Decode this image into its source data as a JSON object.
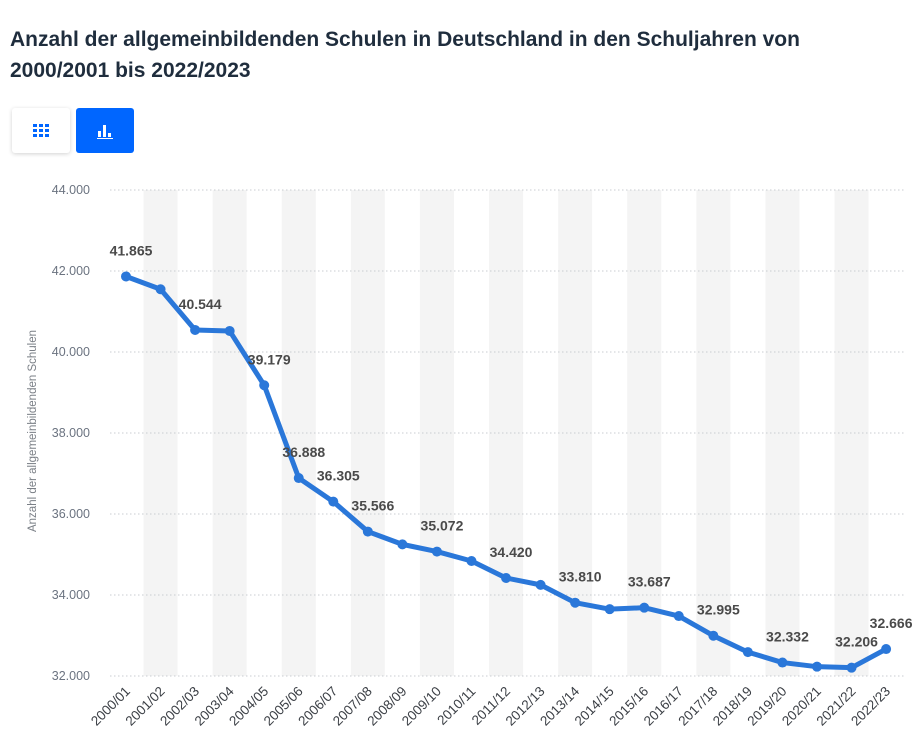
{
  "title": "Anzahl der allgemeinbildenden Schulen in Deutschland in den Schuljahren von 2000/2001 bis 2022/2023",
  "view_toggle": {
    "table_icon": "table-grid-icon",
    "chart_icon": "bar-chart-icon",
    "active": "chart"
  },
  "colors": {
    "accent": "#0066ff",
    "line": "#2a77d9",
    "band": "#f4f4f4",
    "grid": "#c9ccd1",
    "title": "#1f2d3d"
  },
  "chart_data": {
    "type": "line",
    "title": "Anzahl der allgemeinbildenden Schulen in Deutschland in den Schuljahren von 2000/2001 bis 2022/2023",
    "xlabel": "",
    "ylabel": "Anzahl der allgemeinbildenden Schulen",
    "ylim": [
      32000,
      44000
    ],
    "yticks": [
      32000,
      34000,
      36000,
      38000,
      40000,
      42000,
      44000
    ],
    "ytick_labels": [
      "32.000",
      "34.000",
      "36.000",
      "38.000",
      "40.000",
      "42.000",
      "44.000"
    ],
    "grid": "horizontal-dotted",
    "categories": [
      "2000/01",
      "2001/02",
      "2002/03",
      "2003/04",
      "2004/05",
      "2005/06",
      "2006/07",
      "2007/08",
      "2008/09",
      "2009/10",
      "2010/11",
      "2011/12",
      "2012/13",
      "2013/14",
      "2014/15",
      "2015/16",
      "2016/17",
      "2017/18",
      "2018/19",
      "2019/20",
      "2020/21",
      "2021/22",
      "2022/23"
    ],
    "values": [
      41865,
      41550,
      40544,
      40520,
      39179,
      36888,
      36305,
      35566,
      35250,
      35072,
      34840,
      34420,
      34250,
      33810,
      33650,
      33687,
      33480,
      32995,
      32590,
      32332,
      32230,
      32206,
      32666
    ],
    "data_labels": [
      {
        "index": 0,
        "text": "41.865"
      },
      {
        "index": 2,
        "text": "40.544"
      },
      {
        "index": 4,
        "text": "39.179"
      },
      {
        "index": 5,
        "text": "36.888"
      },
      {
        "index": 6,
        "text": "36.305"
      },
      {
        "index": 7,
        "text": "35.566"
      },
      {
        "index": 9,
        "text": "35.072"
      },
      {
        "index": 11,
        "text": "34.420"
      },
      {
        "index": 13,
        "text": "33.810"
      },
      {
        "index": 15,
        "text": "33.687"
      },
      {
        "index": 17,
        "text": "32.995"
      },
      {
        "index": 19,
        "text": "32.332"
      },
      {
        "index": 21,
        "text": "32.206"
      },
      {
        "index": 22,
        "text": "32.666"
      }
    ]
  }
}
